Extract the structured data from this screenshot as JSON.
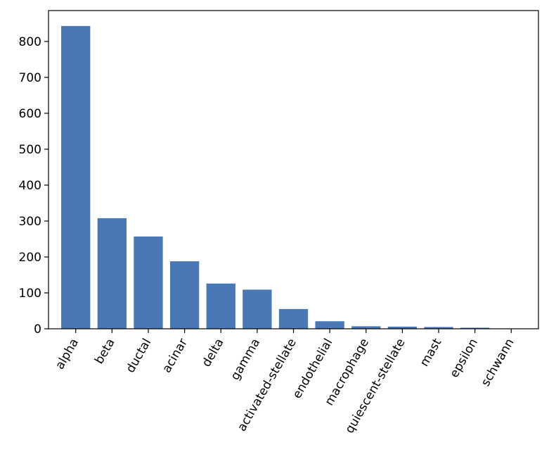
{
  "chart_data": {
    "type": "bar",
    "title": "",
    "xlabel": "",
    "ylabel": "",
    "categories": [
      "alpha",
      "beta",
      "ductal",
      "acinar",
      "delta",
      "gamma",
      "activated-stellate",
      "endothelial",
      "macrophage",
      "quiescent-stellate",
      "mast",
      "epsilon",
      "schwann"
    ],
    "values": [
      843,
      308,
      257,
      188,
      126,
      109,
      55,
      21,
      7,
      6,
      5,
      3,
      1
    ],
    "ylim": [
      0,
      886
    ],
    "yticks": [
      0,
      100,
      200,
      300,
      400,
      500,
      600,
      700,
      800
    ],
    "grid": false,
    "legend": "none",
    "bar_color": "#4a78b4"
  }
}
